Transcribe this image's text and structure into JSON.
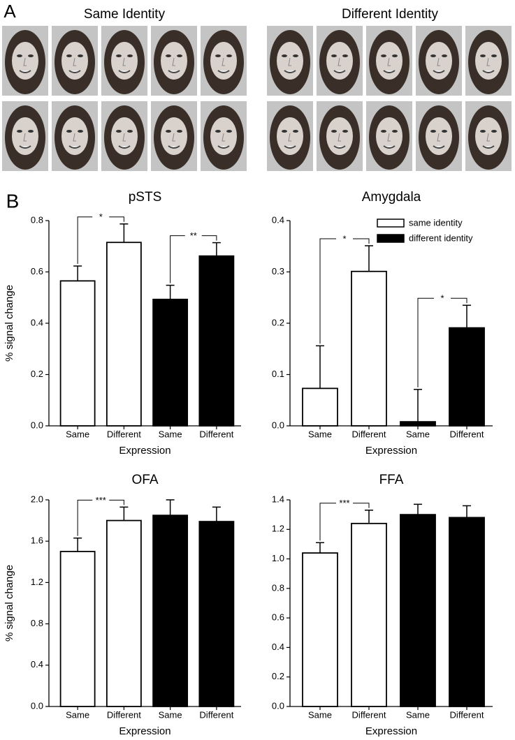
{
  "panel_a": {
    "label": "A",
    "titles": [
      "Same Identity",
      "Different Identity"
    ]
  },
  "panel_b": {
    "label": "B"
  },
  "chart_data": [
    {
      "type": "bar",
      "title": "pSTS",
      "xlabel": "Expression",
      "ylabel": "% signal change",
      "categories": [
        "Same",
        "Different",
        "Same",
        "Different"
      ],
      "series": [
        {
          "color": "#ffffff",
          "values": [
            0.565,
            0.715,
            null,
            null
          ],
          "errors": [
            0.058,
            0.072,
            null,
            null
          ]
        },
        {
          "color": "#000000",
          "values": [
            null,
            null,
            0.493,
            0.662
          ],
          "errors": [
            null,
            null,
            0.055,
            0.052
          ]
        }
      ],
      "ylim": [
        0,
        0.8
      ],
      "yticks": [
        {
          "value": 0,
          "label": "0.0"
        },
        0.2,
        0.4,
        0.6,
        0.8
      ],
      "annotations": [
        {
          "text": "*",
          "from": 0,
          "to": 1
        },
        {
          "text": "**",
          "from": 2,
          "to": 3
        }
      ]
    },
    {
      "type": "bar",
      "title": "Amygdala",
      "xlabel": "Expression",
      "categories": [
        "Same",
        "Different",
        "Same",
        "Different"
      ],
      "series": [
        {
          "name": "same identity",
          "color": "#ffffff",
          "values": [
            0.073,
            0.301,
            null,
            null
          ],
          "errors": [
            0.083,
            0.05,
            null,
            null
          ]
        },
        {
          "name": "different identity",
          "color": "#000000",
          "values": [
            null,
            null,
            0.008,
            0.191
          ],
          "errors": [
            null,
            null,
            0.063,
            0.044
          ]
        }
      ],
      "legend": "upper right",
      "ylim": [
        0,
        0.4
      ],
      "yticks": [
        {
          "value": 0,
          "label": "0.0"
        },
        0.1,
        0.2,
        0.3,
        0.4
      ],
      "annotations": [
        {
          "text": "*",
          "from": 0,
          "to": 1
        },
        {
          "text": "*",
          "from": 2,
          "to": 3
        }
      ]
    },
    {
      "type": "bar",
      "title": "OFA",
      "xlabel": "Expression",
      "ylabel": "% signal change",
      "categories": [
        "Same",
        "Different",
        "Same",
        "Different"
      ],
      "series": [
        {
          "color": "#ffffff",
          "values": [
            1.5,
            1.8,
            null,
            null
          ],
          "errors": [
            0.13,
            0.13,
            null,
            null
          ]
        },
        {
          "color": "#000000",
          "values": [
            null,
            null,
            1.85,
            1.79
          ],
          "errors": [
            null,
            null,
            0.15,
            0.14
          ]
        }
      ],
      "ylim": [
        0,
        2
      ],
      "yticks": [
        {
          "value": 0,
          "label": "0.0"
        },
        0.4,
        0.8,
        1.2,
        1.6,
        {
          "value": 2,
          "label": "2.0"
        }
      ],
      "annotations": [
        {
          "text": "***",
          "from": 0,
          "to": 1
        }
      ]
    },
    {
      "type": "bar",
      "title": "FFA",
      "xlabel": "Expression",
      "categories": [
        "Same",
        "Different",
        "Same",
        "Different"
      ],
      "series": [
        {
          "color": "#ffffff",
          "values": [
            1.04,
            1.24,
            null,
            null
          ],
          "errors": [
            0.07,
            0.09,
            null,
            null
          ]
        },
        {
          "color": "#000000",
          "values": [
            null,
            null,
            1.3,
            1.28
          ],
          "errors": [
            null,
            null,
            0.07,
            0.08
          ]
        }
      ],
      "ylim": [
        0,
        1.4
      ],
      "yticks": [
        {
          "value": 0,
          "label": "0.0"
        },
        0.2,
        0.4,
        0.6,
        0.8,
        {
          "value": 1,
          "label": "1.0"
        },
        1.2,
        1.4
      ],
      "annotations": [
        {
          "text": "***",
          "from": 0,
          "to": 1
        }
      ]
    }
  ]
}
